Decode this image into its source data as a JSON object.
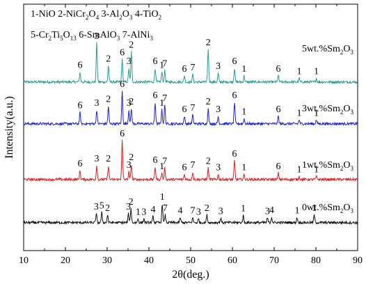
{
  "chart_data": {
    "type": "line",
    "xlabel_main": "2θ(deg.)",
    "ylabel": "Intensity(a.u.)",
    "xlim": [
      10,
      90
    ],
    "xticks": [
      10,
      20,
      30,
      40,
      50,
      60,
      70,
      80,
      90
    ],
    "y_ticks_visible": false,
    "grid": false,
    "legend_placement": "top-left",
    "legend": [
      [
        {
          "t": "1-NiO 2-NiCr"
        },
        {
          "t": "2",
          "sub": true
        },
        {
          "t": "O"
        },
        {
          "t": "4",
          "sub": true
        },
        {
          "t": " 3-Al"
        },
        {
          "t": "2",
          "sub": true
        },
        {
          "t": "O"
        },
        {
          "t": "3",
          "sub": true
        },
        {
          "t": " 4-TiO"
        },
        {
          "t": "2",
          "sub": true
        }
      ],
      [
        {
          "t": "5-Cr"
        },
        {
          "t": "2",
          "sub": true
        },
        {
          "t": "Ti"
        },
        {
          "t": "5",
          "sub": true
        },
        {
          "t": "O"
        },
        {
          "t": "13",
          "sub": true
        },
        {
          "t": " 6-SmAlO"
        },
        {
          "t": "3",
          "sub": true
        },
        {
          "t": " 7-AlNi"
        },
        {
          "t": "3",
          "sub": true
        }
      ]
    ],
    "series": [
      {
        "name_parts": [
          {
            "t": "5wt.%Sm"
          },
          {
            "t": "2",
            "sub": true
          },
          {
            "t": "O"
          },
          {
            "t": "3",
            "sub": true
          }
        ],
        "color": "#2a9d8f",
        "baseline": 0.2,
        "noise": 0.05,
        "peaks": [
          [
            23.5,
            0.4
          ],
          [
            27.5,
            1.55
          ],
          [
            30.3,
            0.65
          ],
          [
            33.6,
            0.9
          ],
          [
            35.2,
            0.55
          ],
          [
            35.8,
            1.2
          ],
          [
            41.5,
            0.55
          ],
          [
            43.1,
            0.4
          ],
          [
            43.8,
            0.45
          ],
          [
            48.5,
            0.25
          ],
          [
            50.5,
            0.3
          ],
          [
            54.2,
            1.3
          ],
          [
            56.6,
            0.35
          ],
          [
            60.5,
            0.55
          ],
          [
            62.8,
            0.25
          ],
          [
            71.0,
            0.25
          ],
          [
            76.0,
            0.15
          ],
          [
            80.1,
            0.15
          ]
        ],
        "labels": [
          [
            "6",
            23.5
          ],
          [
            "3",
            27.5
          ],
          [
            "2",
            30.3
          ],
          [
            "6",
            33.6
          ],
          [
            "3",
            35.2
          ],
          [
            "2",
            35.8
          ],
          [
            "6",
            41.5
          ],
          [
            "1",
            43.1
          ],
          [
            "7",
            43.8
          ],
          [
            "6",
            48.5
          ],
          [
            "7",
            50.5
          ],
          [
            "2",
            54.2
          ],
          [
            "3",
            56.6
          ],
          [
            "6",
            60.5
          ],
          [
            "1",
            62.8
          ],
          [
            "6",
            71.0
          ],
          [
            "1",
            76.0
          ],
          [
            "1",
            80.1
          ]
        ]
      },
      {
        "name_parts": [
          {
            "t": "3wt.%Sm"
          },
          {
            "t": "2",
            "sub": true
          },
          {
            "t": "O"
          },
          {
            "t": "3",
            "sub": true
          }
        ],
        "color": "#1f1fd6",
        "baseline": 0.2,
        "noise": 0.05,
        "peaks": [
          [
            23.5,
            0.45
          ],
          [
            27.5,
            0.55
          ],
          [
            30.3,
            0.7
          ],
          [
            33.6,
            1.3
          ],
          [
            35.2,
            0.55
          ],
          [
            35.8,
            0.6
          ],
          [
            41.5,
            0.85
          ],
          [
            43.1,
            0.55
          ],
          [
            43.8,
            0.75
          ],
          [
            48.5,
            0.3
          ],
          [
            50.5,
            0.35
          ],
          [
            54.2,
            0.6
          ],
          [
            56.6,
            0.3
          ],
          [
            60.5,
            0.85
          ],
          [
            62.8,
            0.2
          ],
          [
            71.0,
            0.3
          ],
          [
            76.0,
            0.15
          ],
          [
            80.1,
            0.15
          ]
        ],
        "labels": [
          [
            "6",
            23.5
          ],
          [
            "3",
            27.5
          ],
          [
            "2",
            30.3
          ],
          [
            "6",
            33.6
          ],
          [
            "3",
            35.2
          ],
          [
            "2",
            35.8
          ],
          [
            "6",
            41.5
          ],
          [
            "1",
            43.1
          ],
          [
            "7",
            43.8
          ],
          [
            "6",
            48.5
          ],
          [
            "7",
            50.5
          ],
          [
            "2",
            54.2
          ],
          [
            "3",
            56.6
          ],
          [
            "6",
            60.5
          ],
          [
            "1",
            62.8
          ],
          [
            "6",
            71.0
          ],
          [
            "1",
            76.0
          ],
          [
            "1",
            80.1
          ]
        ]
      },
      {
        "name_parts": [
          {
            "t": "1wt.%Sm"
          },
          {
            "t": "2",
            "sub": true
          },
          {
            "t": "O"
          },
          {
            "t": "3",
            "sub": true
          }
        ],
        "color": "#e41a1c",
        "baseline": 0.2,
        "noise": 0.05,
        "peaks": [
          [
            23.5,
            0.35
          ],
          [
            27.5,
            0.55
          ],
          [
            30.3,
            0.55
          ],
          [
            33.6,
            1.55
          ],
          [
            35.2,
            0.3
          ],
          [
            35.8,
            0.6
          ],
          [
            41.5,
            0.5
          ],
          [
            43.1,
            0.25
          ],
          [
            43.8,
            0.45
          ],
          [
            48.5,
            0.2
          ],
          [
            50.5,
            0.3
          ],
          [
            54.2,
            0.45
          ],
          [
            56.6,
            0.2
          ],
          [
            60.5,
            0.75
          ],
          [
            62.8,
            0.2
          ],
          [
            71.0,
            0.25
          ],
          [
            76.0,
            0.12
          ],
          [
            80.1,
            0.12
          ]
        ],
        "labels": [
          [
            "6",
            23.5
          ],
          [
            "3",
            27.5
          ],
          [
            "2",
            30.3
          ],
          [
            "6",
            33.6
          ],
          [
            "3",
            35.2
          ],
          [
            "2",
            35.8
          ],
          [
            "6",
            41.5
          ],
          [
            "1",
            43.1
          ],
          [
            "7",
            43.8
          ],
          [
            "6",
            48.5
          ],
          [
            "7",
            50.5
          ],
          [
            "2",
            54.2
          ],
          [
            "3",
            56.6
          ],
          [
            "6",
            60.5
          ],
          [
            "1",
            62.8
          ],
          [
            "6",
            71.0
          ],
          [
            "1",
            76.0
          ],
          [
            "1",
            80.1
          ]
        ]
      },
      {
        "name_parts": [
          {
            "t": "0wt.%Sm"
          },
          {
            "t": "2",
            "sub": true
          },
          {
            "t": "O"
          },
          {
            "t": "3",
            "sub": true
          }
        ],
        "color": "#111111",
        "baseline": 0.2,
        "noise": 0.05,
        "peaks": [
          [
            27.4,
            0.35
          ],
          [
            28.7,
            0.4
          ],
          [
            30.1,
            0.3
          ],
          [
            35.1,
            0.35
          ],
          [
            35.7,
            0.55
          ],
          [
            37.4,
            0.15
          ],
          [
            38.8,
            0.15
          ],
          [
            41.0,
            0.25
          ],
          [
            43.2,
            0.75
          ],
          [
            43.9,
            0.3
          ],
          [
            47.5,
            0.2
          ],
          [
            50.5,
            0.2
          ],
          [
            51.9,
            0.15
          ],
          [
            53.9,
            0.3
          ],
          [
            57.2,
            0.18
          ],
          [
            62.6,
            0.28
          ],
          [
            68.4,
            0.18
          ],
          [
            69.4,
            0.22
          ],
          [
            75.5,
            0.2
          ],
          [
            79.6,
            0.3
          ]
        ],
        "labels": [
          [
            "3",
            27.4
          ],
          [
            "5",
            28.7
          ],
          [
            "2",
            30.1
          ],
          [
            "3",
            35.1
          ],
          [
            "2",
            35.7
          ],
          [
            "1",
            37.4
          ],
          [
            "3",
            38.8
          ],
          [
            "4",
            41.0
          ],
          [
            "1",
            43.2
          ],
          [
            "7",
            43.9
          ],
          [
            "4",
            47.5
          ],
          [
            "7",
            50.5
          ],
          [
            "3",
            51.9
          ],
          [
            "2",
            53.9
          ],
          [
            "3",
            57.2
          ],
          [
            "1",
            62.6
          ],
          [
            "3",
            68.4
          ],
          [
            "4",
            69.4
          ],
          [
            "1",
            75.5
          ],
          [
            "1",
            79.6
          ]
        ]
      }
    ]
  }
}
